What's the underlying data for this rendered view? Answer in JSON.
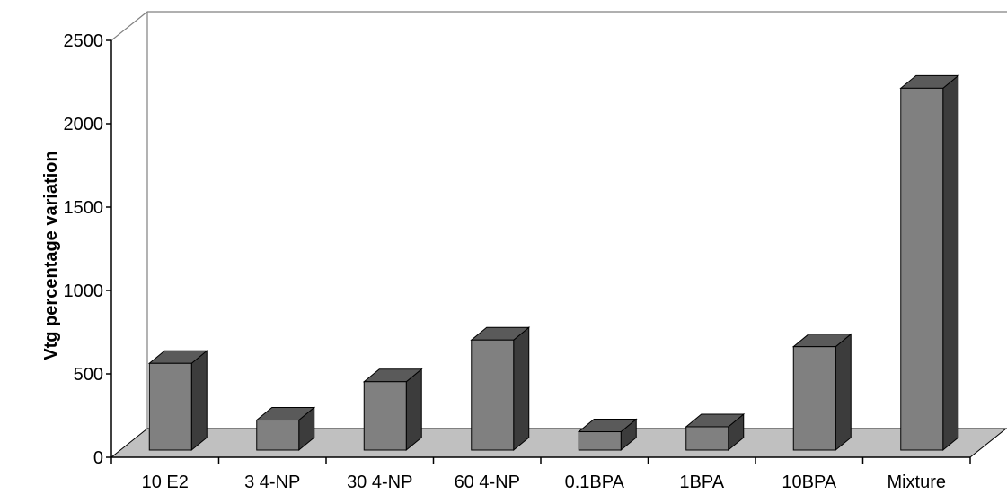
{
  "chart_data": {
    "type": "bar",
    "title": "",
    "xlabel": "",
    "ylabel": "Vtg percentage variation",
    "ylim": [
      0,
      2500
    ],
    "yticks": [
      0,
      500,
      1000,
      1500,
      2000,
      2500
    ],
    "categories": [
      "10 E2",
      "3 4-NP",
      "30 4-NP",
      "60 4-NP",
      "0.1BPA",
      "1BPA",
      "10BPA",
      "Mixture"
    ],
    "values": [
      520,
      180,
      410,
      660,
      110,
      140,
      620,
      2170
    ],
    "grid": false,
    "legend": "none",
    "colors": {
      "bar_front": "#808080",
      "bar_top": "#5a5a5a",
      "bar_side": "#3c3c3c",
      "floor": "#c0c0c0",
      "wall_line": "#808080"
    }
  }
}
